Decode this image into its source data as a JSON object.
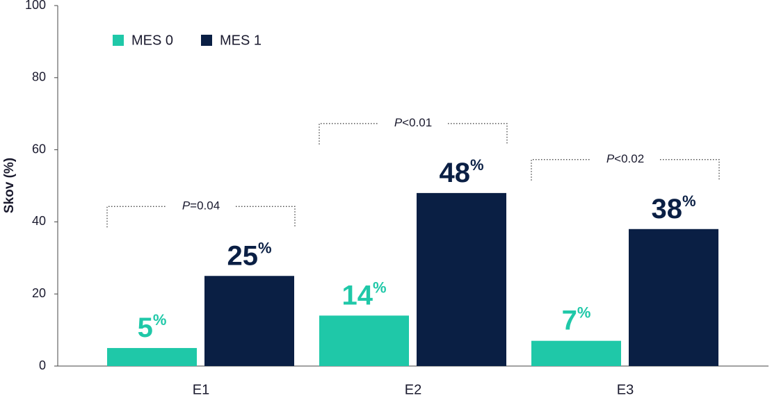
{
  "chart_data": {
    "type": "bar",
    "y_label": "Skov (%)",
    "categories": [
      "E1",
      "E2",
      "E3"
    ],
    "series": [
      {
        "name": "MES 0",
        "color": "#1fc8a8",
        "values": [
          5,
          14,
          7
        ],
        "value_labels": [
          "5%",
          "14%",
          "7%"
        ]
      },
      {
        "name": "MES 1",
        "color": "#0a1f44",
        "values": [
          25,
          48,
          38
        ],
        "value_labels": [
          "25%",
          "48%",
          "38%"
        ]
      }
    ],
    "annotations": [
      "P=0.04",
      "P<0.01",
      "P<0.02"
    ],
    "ylim": [
      0,
      100
    ],
    "yticks": [
      0,
      20,
      40,
      60,
      80,
      100
    ],
    "grid": false
  }
}
